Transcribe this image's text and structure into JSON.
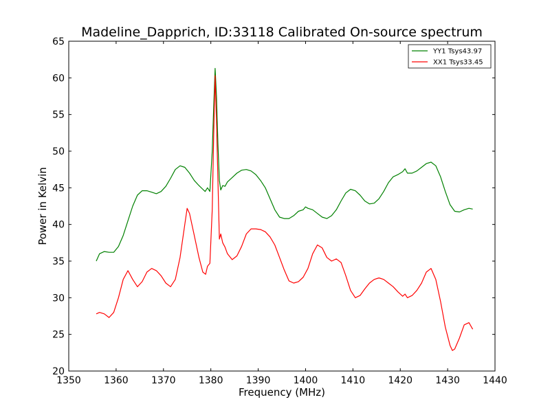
{
  "chart_data": {
    "type": "line",
    "title": "Madeline_Dapprich, ID:33118 Calibrated On-source spectrum",
    "xlabel": "Frequency (MHz)",
    "ylabel": "Power in Kelvin",
    "xlim": [
      1350,
      1440
    ],
    "ylim": [
      20,
      65
    ],
    "xticks": [
      "1350",
      "1360",
      "1370",
      "1380",
      "1390",
      "1400",
      "1410",
      "1420",
      "1430",
      "1440"
    ],
    "yticks": [
      "20",
      "25",
      "30",
      "35",
      "40",
      "45",
      "50",
      "55",
      "60",
      "65"
    ],
    "grid": false,
    "legend_position": "top-right",
    "series": [
      {
        "name": "YY1 Tsys43.97",
        "color": "#008000",
        "points": [
          [
            1355.8,
            35.0
          ],
          [
            1356.5,
            36.0
          ],
          [
            1357.5,
            36.3
          ],
          [
            1358.5,
            36.2
          ],
          [
            1359.5,
            36.2
          ],
          [
            1360.5,
            37.0
          ],
          [
            1361.5,
            38.5
          ],
          [
            1362.5,
            40.5
          ],
          [
            1363.5,
            42.5
          ],
          [
            1364.5,
            44.0
          ],
          [
            1365.5,
            44.6
          ],
          [
            1366.5,
            44.6
          ],
          [
            1367.5,
            44.4
          ],
          [
            1368.5,
            44.2
          ],
          [
            1369.5,
            44.5
          ],
          [
            1370.5,
            45.2
          ],
          [
            1371.5,
            46.3
          ],
          [
            1372.5,
            47.5
          ],
          [
            1373.5,
            48.0
          ],
          [
            1374.5,
            47.8
          ],
          [
            1375.5,
            47.0
          ],
          [
            1376.5,
            46.0
          ],
          [
            1377.5,
            45.3
          ],
          [
            1378.3,
            44.8
          ],
          [
            1378.8,
            44.5
          ],
          [
            1379.3,
            45.0
          ],
          [
            1379.8,
            44.5
          ],
          [
            1380.3,
            50.0
          ],
          [
            1380.6,
            56.0
          ],
          [
            1380.9,
            61.3
          ],
          [
            1381.2,
            57.5
          ],
          [
            1381.5,
            51.0
          ],
          [
            1381.8,
            46.0
          ],
          [
            1382.1,
            44.7
          ],
          [
            1382.5,
            45.3
          ],
          [
            1383.0,
            45.2
          ],
          [
            1383.5,
            45.8
          ],
          [
            1384.5,
            46.4
          ],
          [
            1385.5,
            47.0
          ],
          [
            1386.5,
            47.4
          ],
          [
            1387.5,
            47.5
          ],
          [
            1388.5,
            47.3
          ],
          [
            1389.5,
            46.8
          ],
          [
            1390.5,
            46.0
          ],
          [
            1391.5,
            45.0
          ],
          [
            1392.5,
            43.5
          ],
          [
            1393.5,
            42.0
          ],
          [
            1394.5,
            41.0
          ],
          [
            1395.5,
            40.8
          ],
          [
            1396.5,
            40.8
          ],
          [
            1397.5,
            41.2
          ],
          [
            1398.5,
            41.8
          ],
          [
            1399.5,
            42.0
          ],
          [
            1400.0,
            42.4
          ],
          [
            1400.5,
            42.2
          ],
          [
            1401.5,
            42.0
          ],
          [
            1402.5,
            41.5
          ],
          [
            1403.5,
            41.0
          ],
          [
            1404.5,
            40.8
          ],
          [
            1405.5,
            41.2
          ],
          [
            1406.5,
            42.0
          ],
          [
            1407.5,
            43.2
          ],
          [
            1408.5,
            44.3
          ],
          [
            1409.5,
            44.8
          ],
          [
            1410.5,
            44.6
          ],
          [
            1411.5,
            44.0
          ],
          [
            1412.5,
            43.2
          ],
          [
            1413.5,
            42.8
          ],
          [
            1414.5,
            42.9
          ],
          [
            1415.5,
            43.5
          ],
          [
            1416.5,
            44.5
          ],
          [
            1417.5,
            45.7
          ],
          [
            1418.5,
            46.5
          ],
          [
            1419.5,
            46.8
          ],
          [
            1420.5,
            47.2
          ],
          [
            1421.0,
            47.6
          ],
          [
            1421.5,
            47.0
          ],
          [
            1422.5,
            47.0
          ],
          [
            1423.5,
            47.3
          ],
          [
            1424.5,
            47.8
          ],
          [
            1425.5,
            48.3
          ],
          [
            1426.5,
            48.5
          ],
          [
            1427.5,
            48.0
          ],
          [
            1428.5,
            46.5
          ],
          [
            1429.5,
            44.5
          ],
          [
            1430.5,
            42.7
          ],
          [
            1431.5,
            41.8
          ],
          [
            1432.5,
            41.7
          ],
          [
            1433.5,
            42.0
          ],
          [
            1434.5,
            42.2
          ],
          [
            1435.3,
            42.1
          ]
        ]
      },
      {
        "name": "XX1 Tsys33.45",
        "color": "#ff0000",
        "points": [
          [
            1355.8,
            27.8
          ],
          [
            1356.5,
            28.0
          ],
          [
            1357.5,
            27.8
          ],
          [
            1358.5,
            27.3
          ],
          [
            1359.5,
            28.0
          ],
          [
            1360.5,
            30.0
          ],
          [
            1361.5,
            32.5
          ],
          [
            1362.5,
            33.7
          ],
          [
            1363.5,
            32.5
          ],
          [
            1364.5,
            31.5
          ],
          [
            1365.5,
            32.2
          ],
          [
            1366.5,
            33.5
          ],
          [
            1367.5,
            34.0
          ],
          [
            1368.5,
            33.7
          ],
          [
            1369.5,
            33.0
          ],
          [
            1370.5,
            32.0
          ],
          [
            1371.5,
            31.5
          ],
          [
            1372.5,
            32.5
          ],
          [
            1373.5,
            35.5
          ],
          [
            1374.5,
            40.0
          ],
          [
            1375.0,
            42.2
          ],
          [
            1375.5,
            41.5
          ],
          [
            1376.5,
            38.5
          ],
          [
            1377.5,
            35.5
          ],
          [
            1378.3,
            33.5
          ],
          [
            1378.9,
            33.2
          ],
          [
            1379.3,
            34.3
          ],
          [
            1379.8,
            34.7
          ],
          [
            1380.3,
            42.0
          ],
          [
            1380.6,
            52.0
          ],
          [
            1380.9,
            60.3
          ],
          [
            1381.2,
            54.0
          ],
          [
            1381.5,
            46.0
          ],
          [
            1381.8,
            38.0
          ],
          [
            1382.1,
            38.7
          ],
          [
            1382.5,
            37.5
          ],
          [
            1383.0,
            36.9
          ],
          [
            1383.5,
            36.0
          ],
          [
            1384.5,
            35.2
          ],
          [
            1385.5,
            35.7
          ],
          [
            1386.5,
            37.0
          ],
          [
            1387.5,
            38.7
          ],
          [
            1388.5,
            39.4
          ],
          [
            1389.5,
            39.4
          ],
          [
            1390.5,
            39.3
          ],
          [
            1391.5,
            39.0
          ],
          [
            1392.5,
            38.3
          ],
          [
            1393.5,
            37.2
          ],
          [
            1394.5,
            35.5
          ],
          [
            1395.5,
            33.8
          ],
          [
            1396.5,
            32.3
          ],
          [
            1397.5,
            32.0
          ],
          [
            1398.5,
            32.2
          ],
          [
            1399.5,
            32.8
          ],
          [
            1400.5,
            34.0
          ],
          [
            1401.5,
            36.0
          ],
          [
            1402.5,
            37.2
          ],
          [
            1403.5,
            36.8
          ],
          [
            1404.5,
            35.5
          ],
          [
            1405.5,
            35.0
          ],
          [
            1406.5,
            35.3
          ],
          [
            1407.5,
            34.8
          ],
          [
            1408.5,
            33.0
          ],
          [
            1409.5,
            31.0
          ],
          [
            1410.5,
            30.0
          ],
          [
            1411.5,
            30.3
          ],
          [
            1412.5,
            31.2
          ],
          [
            1413.5,
            32.0
          ],
          [
            1414.5,
            32.5
          ],
          [
            1415.5,
            32.7
          ],
          [
            1416.5,
            32.5
          ],
          [
            1417.5,
            32.0
          ],
          [
            1418.5,
            31.5
          ],
          [
            1419.5,
            30.8
          ],
          [
            1420.5,
            30.2
          ],
          [
            1421.0,
            30.5
          ],
          [
            1421.5,
            30.0
          ],
          [
            1422.5,
            30.3
          ],
          [
            1423.5,
            31.0
          ],
          [
            1424.5,
            32.0
          ],
          [
            1425.5,
            33.5
          ],
          [
            1426.5,
            34.0
          ],
          [
            1427.5,
            32.5
          ],
          [
            1428.5,
            29.5
          ],
          [
            1429.5,
            26.0
          ],
          [
            1430.5,
            23.5
          ],
          [
            1431.0,
            22.8
          ],
          [
            1431.5,
            23.0
          ],
          [
            1432.5,
            24.5
          ],
          [
            1433.5,
            26.3
          ],
          [
            1434.5,
            26.6
          ],
          [
            1435.3,
            25.7
          ]
        ]
      }
    ]
  }
}
